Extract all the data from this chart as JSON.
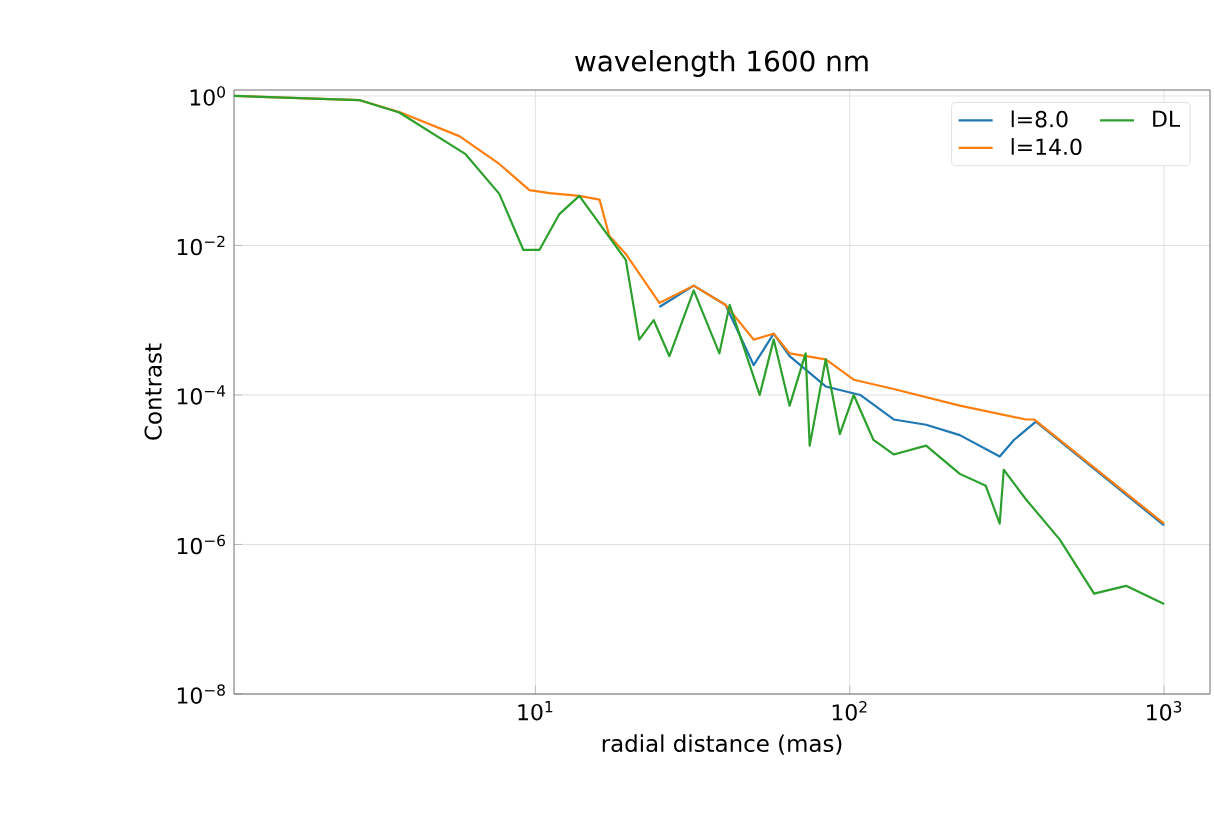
{
  "chart_data": {
    "type": "line",
    "title": "wavelength 1600 nm",
    "xlabel": "radial distance (mas)",
    "ylabel": "Contrast",
    "log": "xy",
    "grid": true,
    "legend": "top right",
    "xlim": [
      1.1,
      1400
    ],
    "ylim": [
      1e-08,
      1.2
    ],
    "xticks": [
      {
        "value": 10,
        "label": "10$^{1}$"
      },
      {
        "value": 100,
        "label": "10$^{2}$"
      },
      {
        "value": 1000,
        "label": "10$^{3}$"
      }
    ],
    "yticks": [
      {
        "value": 1e-08,
        "label": "10$^{−8}$"
      },
      {
        "value": 1e-06,
        "label": "10$^{−6}$"
      },
      {
        "value": 0.0001,
        "label": "10$^{−4}$"
      },
      {
        "value": 0.01,
        "label": "10$^{−2}$"
      },
      {
        "value": 1,
        "label": "10$^{0}$"
      }
    ],
    "series": [
      {
        "name": "l=8.0",
        "color": "#1f77b4",
        "x": [
          24.8,
          31.9,
          40.3,
          49.5,
          57.3,
          64.4,
          83.9,
          108,
          138,
          175,
          224,
          300,
          333,
          391,
          1000
        ],
        "values": [
          0.0015,
          0.0029,
          0.0016,
          0.00025,
          0.00066,
          0.00033,
          0.00013,
          0.0001,
          4.7e-05,
          4e-05,
          2.9e-05,
          1.5e-05,
          2.5e-05,
          4.4e-05,
          1.8e-06
        ]
      },
      {
        "name": "l=14.0",
        "color": "#ff7f0e",
        "x": [
          1.1,
          2.75,
          3.69,
          5.73,
          7.68,
          9.57,
          11.1,
          13.8,
          16.0,
          17.2,
          19.4,
          24.8,
          31.9,
          40.3,
          49.5,
          57.3,
          64.4,
          83.9,
          103,
          138,
          224,
          364,
          386,
          1000
        ],
        "values": [
          1,
          0.88,
          0.61,
          0.29,
          0.123,
          0.055,
          0.05,
          0.046,
          0.041,
          0.0134,
          0.0077,
          0.0017,
          0.0029,
          0.0016,
          0.00055,
          0.00066,
          0.00036,
          0.0003,
          0.00016,
          0.00012,
          7.2e-05,
          4.7e-05,
          4.7e-05,
          1.9e-06
        ]
      },
      {
        "name": "DL",
        "color": "#2ca02c",
        "x": [
          1.1,
          2.75,
          3.69,
          5.98,
          7.68,
          9.16,
          10.3,
          11.9,
          13.8,
          19.4,
          21.4,
          23.8,
          26.7,
          31.9,
          38.5,
          41.5,
          51.7,
          57.3,
          64.4,
          72.4,
          74.6,
          83.9,
          93.0,
          103,
          119,
          138,
          175,
          224,
          271,
          300,
          309,
          364,
          466,
          599,
          757,
          1000
        ],
        "values": [
          1,
          0.88,
          0.6,
          0.168,
          0.049,
          0.0087,
          0.0087,
          0.026,
          0.046,
          0.0064,
          0.00055,
          0.001,
          0.00033,
          0.0025,
          0.00036,
          0.0016,
          0.0001,
          0.00055,
          7.2e-05,
          0.00036,
          2.1e-05,
          0.0003,
          3e-05,
          0.0001,
          2.5e-05,
          1.6e-05,
          2.1e-05,
          8.8e-06,
          6.1e-06,
          1.9e-06,
          1e-05,
          4e-06,
          1.16e-06,
          2.2e-07,
          2.8e-07,
          1.6e-07
        ]
      }
    ]
  }
}
